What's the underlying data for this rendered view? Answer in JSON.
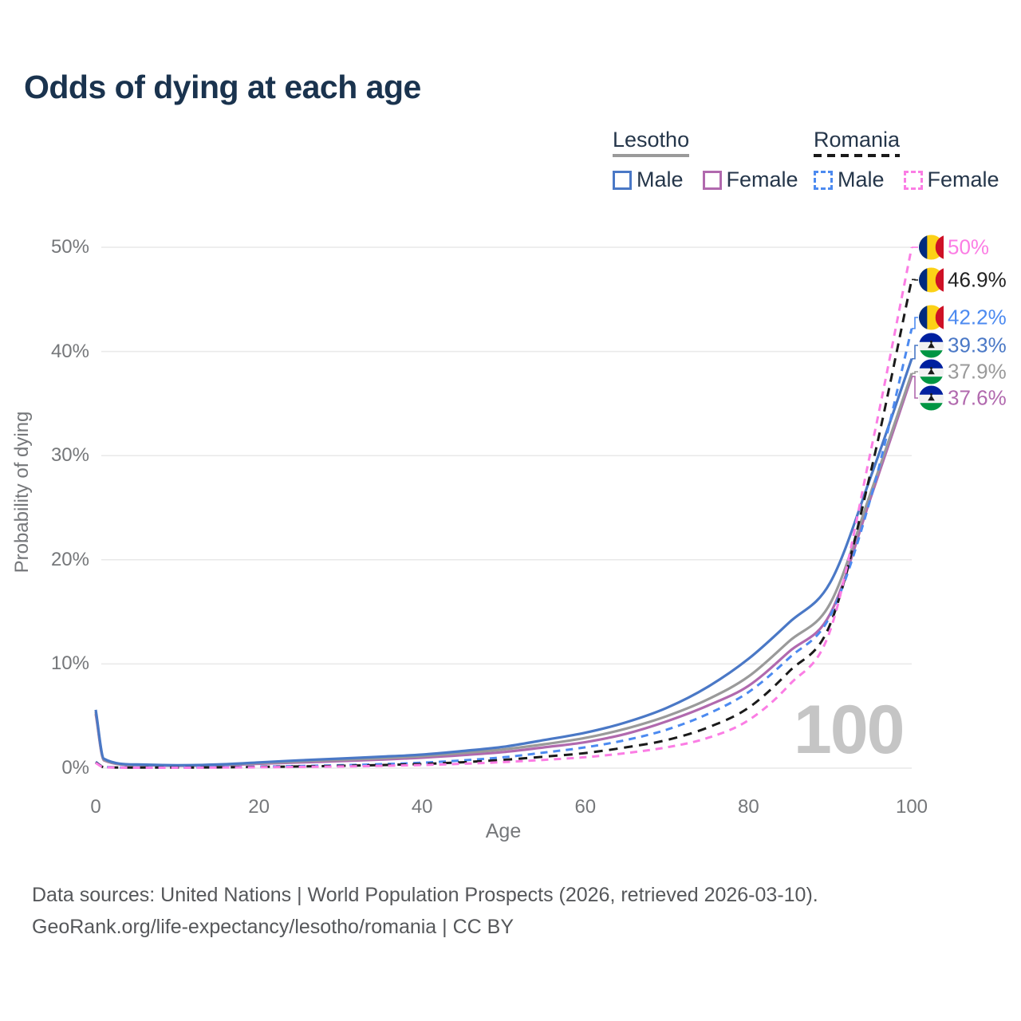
{
  "title": "Odds of dying at each age",
  "watermark": "100",
  "footer": {
    "line1": "Data sources: United Nations | World Population Prospects (2026, retrieved 2026-03-10).",
    "line2": "GeoRank.org/life-expectancy/lesotho/romania | CC BY"
  },
  "colors": {
    "title_text": "#1a334e",
    "legend_text": "#25364a",
    "tick_text": "#75777a",
    "gridline": "#e9e9e9",
    "watermark_text": "#c5c5c5",
    "footer_text": "#55575a",
    "lesotho_male": "#4a78c6",
    "lesotho_total": "#9a9a9a",
    "lesotho_female": "#b169ae",
    "romania_male": "#4c8af0",
    "romania_total": "#1a1a1a",
    "romania_female": "#fb7de4"
  },
  "legend": {
    "groups": [
      {
        "name": "Lesotho",
        "underline_color": "#9a9a9a",
        "underline_style": "solid",
        "items": [
          {
            "label": "Male",
            "color": "#4a78c6",
            "style": "solid"
          },
          {
            "label": "Female",
            "color": "#b169ae",
            "style": "solid"
          }
        ]
      },
      {
        "name": "Romania",
        "underline_color": "#1a1a1a",
        "underline_style": "dashed",
        "items": [
          {
            "label": "Male",
            "color": "#4c8af0",
            "style": "dashed"
          },
          {
            "label": "Female",
            "color": "#fb7de4",
            "style": "dashed"
          }
        ]
      }
    ]
  },
  "chart_data": {
    "type": "line",
    "title": "Odds of dying at each age",
    "xlabel": "Age",
    "ylabel": "Probability of dying",
    "xlim": [
      0,
      100
    ],
    "ylim": [
      0,
      50
    ],
    "x_ticks": [
      0,
      20,
      40,
      60,
      80,
      100
    ],
    "y_ticks": [
      "0%",
      "10%",
      "20%",
      "30%",
      "40%",
      "50%"
    ],
    "grid": true,
    "legend_position": "top-right",
    "ages": [
      0,
      1,
      5,
      10,
      15,
      20,
      25,
      30,
      35,
      40,
      45,
      50,
      55,
      60,
      65,
      70,
      75,
      80,
      85,
      90,
      95,
      100
    ],
    "series": [
      {
        "name": "Lesotho Female",
        "country": "Lesotho",
        "sex": "Female",
        "style": "solid",
        "color": "#b169ae",
        "values": [
          5.2,
          0.75,
          0.3,
          0.22,
          0.27,
          0.42,
          0.55,
          0.68,
          0.82,
          1.0,
          1.25,
          1.55,
          2.0,
          2.5,
          3.3,
          4.5,
          6.0,
          7.9,
          11.2,
          14.8,
          26.0,
          37.6
        ]
      },
      {
        "name": "Lesotho",
        "country": "Lesotho",
        "sex": "Both",
        "style": "solid",
        "color": "#9a9a9a",
        "values": [
          5.4,
          0.8,
          0.32,
          0.25,
          0.3,
          0.48,
          0.65,
          0.8,
          0.95,
          1.15,
          1.45,
          1.8,
          2.3,
          2.9,
          3.8,
          5.0,
          6.6,
          8.8,
          12.2,
          15.8,
          26.5,
          37.9
        ]
      },
      {
        "name": "Lesotho Male",
        "country": "Lesotho",
        "sex": "Male",
        "style": "solid",
        "color": "#4a78c6",
        "values": [
          5.6,
          0.9,
          0.35,
          0.28,
          0.35,
          0.55,
          0.75,
          0.92,
          1.1,
          1.3,
          1.65,
          2.05,
          2.7,
          3.4,
          4.4,
          5.8,
          7.8,
          10.5,
          14.0,
          17.8,
          28.0,
          39.3
        ]
      },
      {
        "name": "Romania Male",
        "country": "Romania",
        "sex": "Male",
        "style": "dashed",
        "color": "#4c8af0",
        "values": [
          0.6,
          0.12,
          0.06,
          0.06,
          0.1,
          0.15,
          0.2,
          0.28,
          0.38,
          0.52,
          0.75,
          1.05,
          1.5,
          2.0,
          2.7,
          3.7,
          5.2,
          7.3,
          10.6,
          14.6,
          26.0,
          42.2
        ]
      },
      {
        "name": "Romania",
        "country": "Romania",
        "sex": "Both",
        "style": "dashed",
        "color": "#1a1a1a",
        "values": [
          0.55,
          0.1,
          0.05,
          0.05,
          0.08,
          0.12,
          0.16,
          0.22,
          0.3,
          0.4,
          0.57,
          0.8,
          1.1,
          1.45,
          2.0,
          2.7,
          3.9,
          5.8,
          9.3,
          13.8,
          28.5,
          46.9
        ]
      },
      {
        "name": "Romania Female",
        "country": "Romania",
        "sex": "Female",
        "style": "dashed",
        "color": "#fb7de4",
        "values": [
          0.5,
          0.09,
          0.04,
          0.04,
          0.06,
          0.09,
          0.12,
          0.16,
          0.22,
          0.3,
          0.42,
          0.58,
          0.8,
          1.05,
          1.45,
          2.0,
          2.9,
          4.6,
          8.0,
          13.2,
          30.5,
          50.0
        ]
      }
    ],
    "end_labels": [
      {
        "series": "Romania Female",
        "text": "50%",
        "color": "#fb7de4",
        "flag": "romania"
      },
      {
        "series": "Romania",
        "text": "46.9%",
        "color": "#222222",
        "flag": "romania"
      },
      {
        "series": "Romania Male",
        "text": "42.2%",
        "color": "#4c8af0",
        "flag": "romania"
      },
      {
        "series": "Lesotho Male",
        "text": "39.3%",
        "color": "#4a78c6",
        "flag": "lesotho"
      },
      {
        "series": "Lesotho",
        "text": "37.9%",
        "color": "#9a9a9a",
        "flag": "lesotho"
      },
      {
        "series": "Lesotho Female",
        "text": "37.6%",
        "color": "#b169ae",
        "flag": "lesotho"
      }
    ]
  }
}
